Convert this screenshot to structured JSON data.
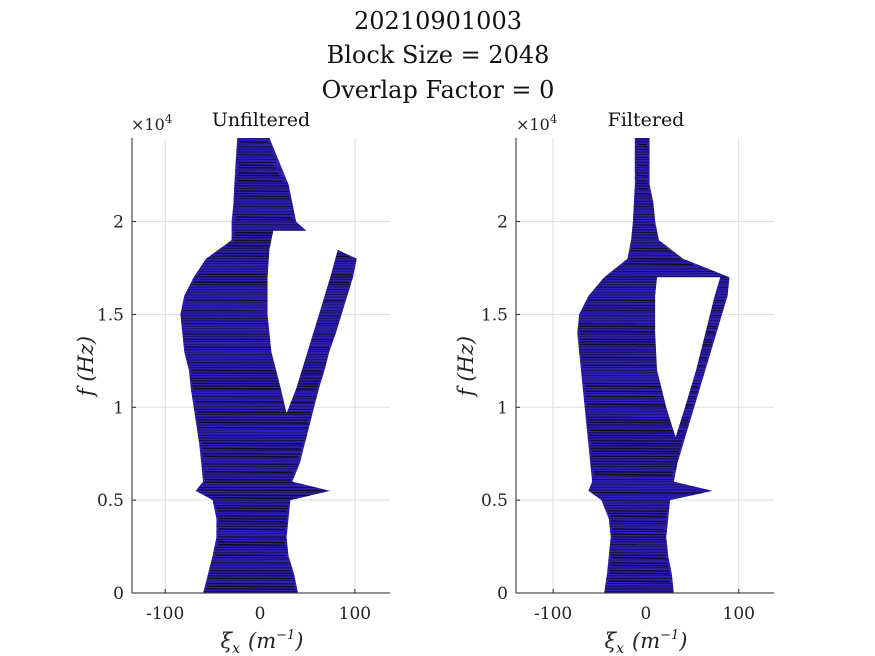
{
  "figure": {
    "title_lines": [
      "20210901003",
      "Block Size = 2048",
      "Overlap Factor = 0"
    ]
  },
  "colors": {
    "fill": "#2e1fb0",
    "stripe": "#0d0820",
    "grid": "#dcdcdc",
    "axis": "#262626"
  },
  "chart_data": [
    {
      "type": "area",
      "title": "Unfiltered",
      "xlabel_base": "ξ",
      "xlabel_sub": "x",
      "xlabel_paren": "(m",
      "xlabel_sup": "−1",
      "xlabel_close": ")",
      "ylabel": "f (Hz)",
      "y_multiplier_base": "×10",
      "y_multiplier_exp": "4",
      "xlim": [
        -135,
        137
      ],
      "ylim": [
        0,
        24500
      ],
      "xticks": [
        -100,
        0,
        100
      ],
      "xtick_labels": [
        "-100",
        "0",
        "100"
      ],
      "yticks": [
        0,
        5000,
        10000,
        15000,
        20000
      ],
      "ytick_labels": [
        "0",
        "0.5",
        "1",
        "1.5",
        "2"
      ],
      "grid": true,
      "region": {
        "f": [
          0,
          1000,
          2000,
          3000,
          4000,
          5000,
          5500,
          6000,
          7000,
          8000,
          9000,
          10000,
          11000,
          12000,
          13000,
          14000,
          15000,
          16000,
          17000,
          18000,
          19000,
          20000,
          21000,
          22000,
          23000,
          24500
        ],
        "left": [
          -60,
          -55,
          -50,
          -46,
          -46,
          -50,
          -68,
          -60,
          -62,
          -64,
          -67,
          -70,
          -73,
          -75,
          -80,
          -82,
          -84,
          -80,
          -70,
          -57,
          -30,
          -28,
          -28,
          -27,
          -25,
          -24
        ],
        "right": [
          40,
          36,
          30,
          28,
          30,
          32,
          74,
          34,
          42,
          47,
          52,
          57,
          62,
          68,
          73,
          80,
          86,
          92,
          98,
          102,
          60,
          38,
          34,
          30,
          18,
          10
        ],
        "lobe_f": [
          9200,
          10200,
          11500,
          13000,
          15000,
          16500,
          18000,
          19000,
          20000,
          21000,
          22000,
          23000,
          24500
        ],
        "lobe_left": [
          -28,
          -24,
          -22,
          -22,
          -24,
          -27,
          -30,
          -30,
          -30,
          -28,
          -27,
          -26,
          -24
        ],
        "lobe_right": [
          -28,
          24,
          26,
          28,
          30,
          33,
          36,
          40,
          38,
          34,
          30,
          22,
          10
        ],
        "gap_f": [
          9700,
          11000,
          13000,
          15000,
          17000,
          18500,
          19500
        ],
        "gap_left": [
          28,
          22,
          12,
          8,
          8,
          10,
          14
        ],
        "gap_right": [
          28,
          38,
          50,
          62,
          74,
          82,
          86
        ]
      }
    },
    {
      "type": "area",
      "title": "Filtered",
      "xlabel_base": "ξ",
      "xlabel_sub": "x",
      "xlabel_paren": "(m",
      "xlabel_sup": "−1",
      "xlabel_close": ")",
      "ylabel": "f (Hz)",
      "y_multiplier_base": "×10",
      "y_multiplier_exp": "4",
      "xlim": [
        -140,
        138
      ],
      "ylim": [
        0,
        24500
      ],
      "xticks": [
        -100,
        0,
        100
      ],
      "xtick_labels": [
        "-100",
        "0",
        "100"
      ],
      "yticks": [
        0,
        5000,
        10000,
        15000,
        20000
      ],
      "ytick_labels": [
        "0",
        "0.5",
        "1",
        "1.5",
        "2"
      ],
      "grid": true,
      "region": {
        "f": [
          0,
          1000,
          2000,
          3000,
          4000,
          5000,
          5500,
          6000,
          7000,
          8000,
          9000,
          10000,
          11000,
          12000,
          13000,
          14000,
          15000,
          16000,
          17000,
          18000,
          19000,
          20000,
          21000,
          22000,
          23000,
          24500
        ],
        "left": [
          -45,
          -42,
          -40,
          -38,
          -40,
          -48,
          -62,
          -58,
          -60,
          -62,
          -64,
          -66,
          -68,
          -70,
          -72,
          -74,
          -72,
          -62,
          -45,
          -20,
          -16,
          -14,
          -13,
          -12,
          -12,
          -12
        ],
        "right": [
          30,
          28,
          24,
          22,
          24,
          26,
          72,
          30,
          34,
          40,
          46,
          52,
          58,
          64,
          70,
          76,
          82,
          88,
          90,
          40,
          14,
          10,
          8,
          4,
          4,
          4
        ],
        "lobe_f": [
          8500,
          10000,
          12000,
          14000,
          16000,
          17000
        ],
        "lobe_left": [
          -20,
          -18,
          -18,
          -16,
          -14,
          -12
        ],
        "lobe_right": [
          -20,
          12,
          14,
          14,
          12,
          10
        ],
        "gap_f": [
          8400,
          10000,
          12000,
          14000,
          16000,
          17000
        ],
        "gap_left": [
          32,
          22,
          12,
          10,
          10,
          12
        ],
        "gap_right": [
          32,
          42,
          54,
          64,
          74,
          80
        ]
      }
    }
  ]
}
